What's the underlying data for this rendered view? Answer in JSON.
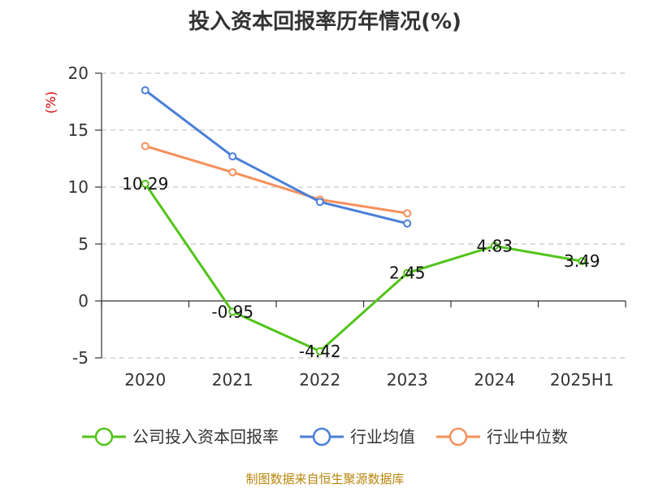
{
  "chart_data": {
    "type": "line",
    "title": "投入资本回报率历年情况(%)",
    "ylabel": "(%)",
    "categories": [
      "2020",
      "2021",
      "2022",
      "2023",
      "2024",
      "2025H1"
    ],
    "ylim": [
      -5,
      20
    ],
    "yticks": [
      -5,
      0,
      5,
      10,
      15,
      20
    ],
    "grid": true,
    "legend_position": "bottom",
    "series": [
      {
        "name": "公司投入资本回报率",
        "color": "#52c41a",
        "values": [
          10.29,
          -0.95,
          -4.42,
          2.45,
          4.83,
          3.49
        ],
        "labels": [
          "10.29",
          "-0.95",
          "-4.42",
          "2.45",
          "4.83",
          "3.49"
        ],
        "show_labels": true
      },
      {
        "name": "行业均值",
        "color": "#4a7fd9",
        "values": [
          18.5,
          12.7,
          8.7,
          6.8,
          null,
          null
        ],
        "show_labels": false
      },
      {
        "name": "行业中位数",
        "color": "#f6905a",
        "values": [
          13.6,
          11.3,
          8.9,
          7.7,
          null,
          null
        ],
        "show_labels": false
      }
    ]
  },
  "source": "制图数据来自恒生聚源数据库"
}
